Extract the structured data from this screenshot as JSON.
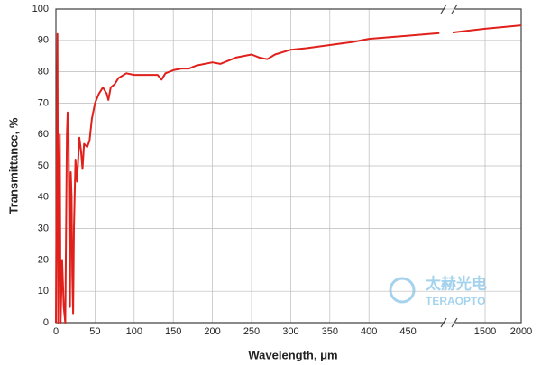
{
  "chart_data": {
    "type": "line",
    "xlabel": "Wavelength, μm",
    "ylabel": "Transmittance, %",
    "watermark": {
      "name": "太赫光电",
      "brand": "TERAOPTO"
    },
    "x": [
      0,
      2,
      3,
      5,
      6,
      8,
      10,
      12,
      14,
      15,
      16,
      17,
      18,
      19,
      20,
      21,
      22,
      23,
      25,
      27,
      30,
      32,
      34,
      36,
      40,
      43,
      46,
      50,
      55,
      60,
      65,
      67,
      70,
      75,
      80,
      90,
      100,
      110,
      120,
      130,
      135,
      140,
      150,
      160,
      170,
      180,
      200,
      210,
      220,
      230,
      250,
      260,
      270,
      280,
      300,
      320,
      350,
      380,
      400,
      450,
      490,
      500,
      1050,
      1500,
      2000
    ],
    "series": [
      {
        "name": "Transmittance",
        "color": "#e0201b",
        "values": [
          0,
          92,
          0,
          60,
          0,
          20,
          5,
          0,
          60,
          67,
          66,
          30,
          5,
          48,
          40,
          15,
          3,
          30,
          52,
          45,
          59,
          55,
          49,
          57,
          56,
          58,
          65,
          70,
          73,
          75,
          73,
          71,
          75,
          76,
          78,
          79.5,
          79,
          79,
          79,
          79,
          77.5,
          79.5,
          80.5,
          81,
          81,
          82,
          83,
          82.5,
          83.5,
          84.5,
          85.5,
          84.5,
          84,
          85.5,
          87,
          87.5,
          88.5,
          89.5,
          90.5,
          91.5,
          92.3,
          null,
          92.5,
          93.7,
          94.8
        ]
      }
    ],
    "xlim": [
      0,
      2000
    ],
    "x_break": [
      500,
      1050
    ],
    "ylim": [
      0,
      100
    ],
    "xticks": [
      0,
      50,
      100,
      150,
      200,
      250,
      300,
      350,
      400,
      450,
      1500,
      2000
    ],
    "yticks": [
      0,
      10,
      20,
      30,
      40,
      50,
      60,
      70,
      80,
      90,
      100
    ],
    "grid": true
  }
}
